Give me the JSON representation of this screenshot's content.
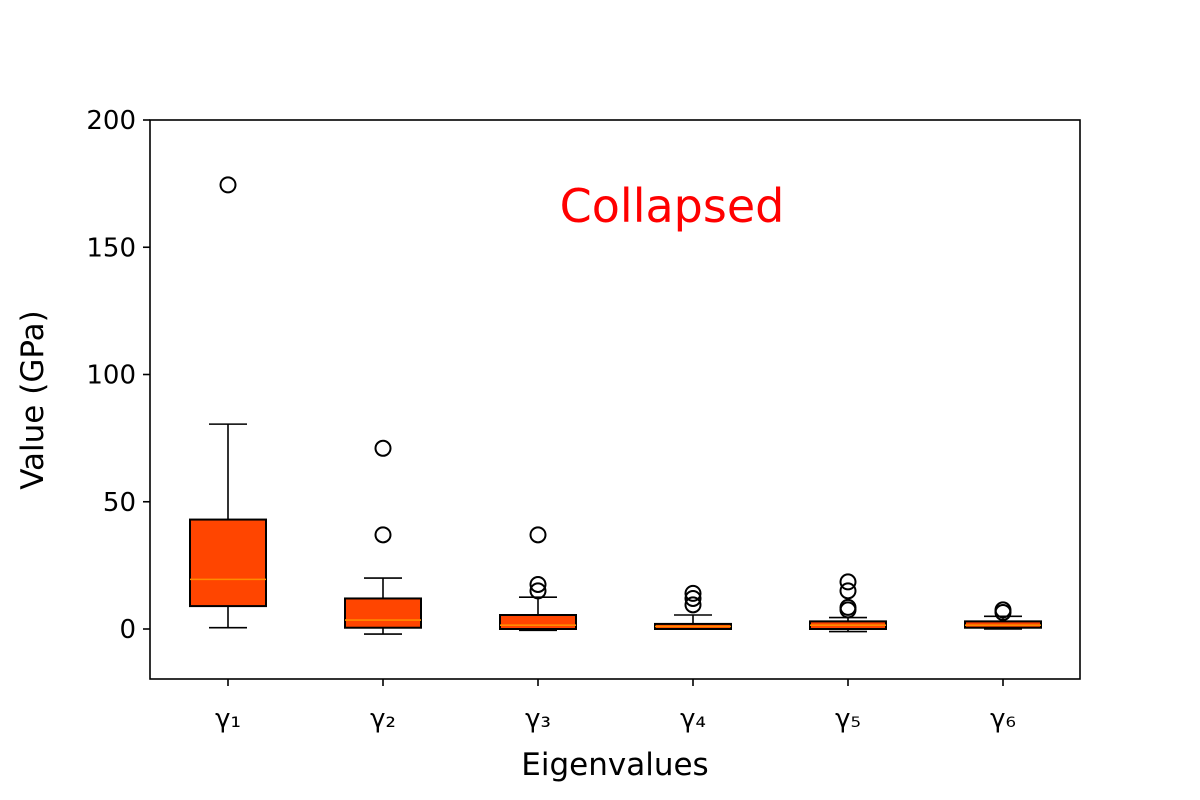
{
  "chart_data": {
    "type": "boxplot",
    "title": "",
    "xlabel": "Eigenvalues",
    "ylabel": "Value (GPa)",
    "ylim": [
      -20,
      200
    ],
    "yticks": [
      0,
      50,
      100,
      150,
      200
    ],
    "grid": false,
    "annotation": {
      "text": "Collapsed",
      "color": "#ff0000"
    },
    "box_color": "#ff4500",
    "median_color": "#ff8c00",
    "categories": [
      "γ₁",
      "γ₂",
      "γ₃",
      "γ₄",
      "γ₅",
      "γ₆"
    ],
    "boxes": [
      {
        "whislo": 0.5,
        "q1": 9,
        "med": 19.5,
        "q3": 43,
        "whishi": 80.5,
        "fliers": [
          174.5
        ]
      },
      {
        "whislo": -2,
        "q1": 0.5,
        "med": 3.5,
        "q3": 12,
        "whishi": 20,
        "fliers": [
          37,
          71
        ]
      },
      {
        "whislo": -0.5,
        "q1": 0,
        "med": 1.5,
        "q3": 5.5,
        "whishi": 12.5,
        "fliers": [
          15,
          17.5,
          37
        ]
      },
      {
        "whislo": 0,
        "q1": 0,
        "med": 1,
        "q3": 2,
        "whishi": 5.5,
        "fliers": [
          9.5,
          12,
          14
        ]
      },
      {
        "whislo": -1,
        "q1": 0,
        "med": 1.5,
        "q3": 3,
        "whishi": 4.5,
        "fliers": [
          7.5,
          8.5,
          15,
          18.5
        ]
      },
      {
        "whislo": 0,
        "q1": 0.5,
        "med": 1.5,
        "q3": 3,
        "whishi": 5,
        "fliers": [
          6.5,
          7.5
        ]
      }
    ]
  }
}
